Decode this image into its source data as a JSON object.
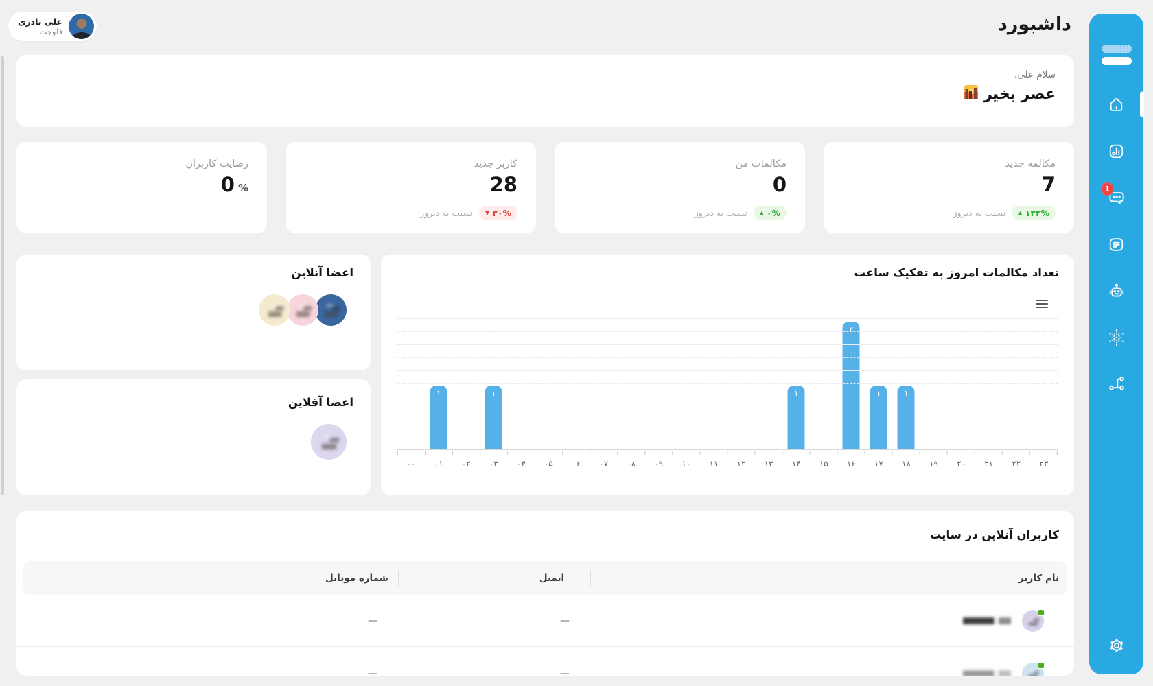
{
  "page": {
    "title": "داشبورد"
  },
  "profile": {
    "name": "علی نادری",
    "subtitle": "فلوچت"
  },
  "greeting": {
    "line1": "سلام علی،",
    "line2": "عصر بخیر"
  },
  "stats": {
    "compare_label": "نسبت به دیروز",
    "cards": [
      {
        "label": "مکالمه جدید",
        "value": "7",
        "badge": {
          "arrow": "▲",
          "text": "۱۳۳%",
          "type": "up"
        }
      },
      {
        "label": "مکالمات من",
        "value": "0",
        "badge": {
          "arrow": "▲",
          "text": "۰%",
          "type": "up"
        }
      },
      {
        "label": "کاربر جدید",
        "value": "28",
        "badge": {
          "arrow": "▼",
          "text": "۳۰%",
          "type": "down"
        }
      },
      {
        "label": "رضایت کاربران",
        "value": "0",
        "unit": "%"
      }
    ]
  },
  "members": {
    "online_title": "اعضا آنلاین",
    "offline_title": "اعضا آفلاین",
    "online_avatar_colors": [
      "#3a679e",
      "#f7d5dc",
      "#f4eacf"
    ],
    "offline_avatar_colors": [
      "#dcd6ee"
    ]
  },
  "chart_data": {
    "type": "bar",
    "title": "تعداد مکالمات امروز به تفکیک ساعت",
    "categories": [
      "۰۰",
      "۰۱",
      "۰۲",
      "۰۳",
      "۰۴",
      "۰۵",
      "۰۶",
      "۰۷",
      "۰۸",
      "۰۹",
      "۱۰",
      "۱۱",
      "۱۲",
      "۱۳",
      "۱۴",
      "۱۵",
      "۱۶",
      "۱۷",
      "۱۸",
      "۱۹",
      "۲۰",
      "۲۱",
      "۲۲",
      "۲۳"
    ],
    "values": [
      0,
      1,
      0,
      1,
      0,
      0,
      0,
      0,
      0,
      0,
      0,
      0,
      0,
      0,
      1,
      0,
      2,
      1,
      1,
      0,
      0,
      0,
      0,
      0
    ],
    "value_labels": [
      "",
      "۱",
      "",
      "۱",
      "",
      "",
      "",
      "",
      "",
      "",
      "",
      "",
      "",
      "",
      "۱",
      "",
      "۲",
      "۱",
      "۱",
      "",
      "",
      "",
      "",
      ""
    ],
    "xlabel": "",
    "ylabel": "",
    "ylim": [
      0,
      2.05
    ],
    "grid": true,
    "legend": false,
    "bar_color": "#57b1e9"
  },
  "table": {
    "title": "کاربران آنلاین در سایت",
    "columns": [
      "نام کاربر",
      "ایمیل",
      "شماره موبایل"
    ],
    "rows": [
      {
        "email": "—",
        "mobile": "—",
        "avatar_color": "#d8d2ea",
        "online": true,
        "redact_colors": [
          "#3e3e3e",
          "#8c8c8c"
        ]
      },
      {
        "email": "—",
        "mobile": "—",
        "avatar_color": "#cfe2f0",
        "online": true,
        "redact_colors": [
          "#9a9a9a",
          "#bdbdbd"
        ]
      }
    ]
  },
  "sidebar": {
    "notification_count": "1",
    "accent_color": "#29a9e2",
    "icons": [
      "home",
      "analytics",
      "chat",
      "forms",
      "robot",
      "snowflake",
      "network",
      "settings"
    ]
  }
}
